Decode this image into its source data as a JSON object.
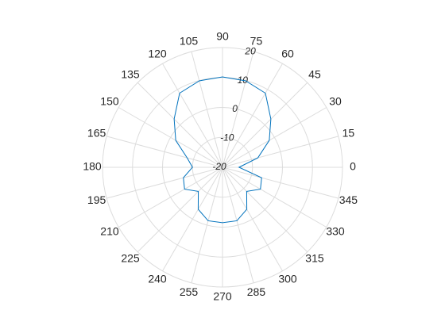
{
  "chart_data": {
    "type": "polar",
    "theta": [
      0,
      15,
      30,
      45,
      60,
      75,
      90,
      105,
      120,
      135,
      150,
      165,
      180,
      195,
      210,
      225,
      240,
      255,
      270,
      285,
      300,
      315,
      330,
      345
    ],
    "series": [
      {
        "color": "#0072bd",
        "values": [
          -14.5,
          -7.8,
          -2,
          2.8,
          8.6,
          9.9,
          10.2,
          9.9,
          8.6,
          2.8,
          -2,
          -7.8,
          -10,
          -6.5,
          -5.4,
          -8.6,
          -3.8,
          -1.5,
          -1.5,
          -1.5,
          -3.8,
          -8.6,
          -5.4,
          -6.5
        ]
      }
    ],
    "rlim": [
      -20,
      20
    ],
    "rticks": [
      -20,
      -10,
      0,
      10,
      20
    ],
    "thetaticks": [
      0,
      15,
      30,
      45,
      60,
      75,
      90,
      105,
      120,
      135,
      150,
      165,
      180,
      195,
      210,
      225,
      240,
      255,
      270,
      285,
      300,
      315,
      330,
      345
    ],
    "grid": true
  }
}
